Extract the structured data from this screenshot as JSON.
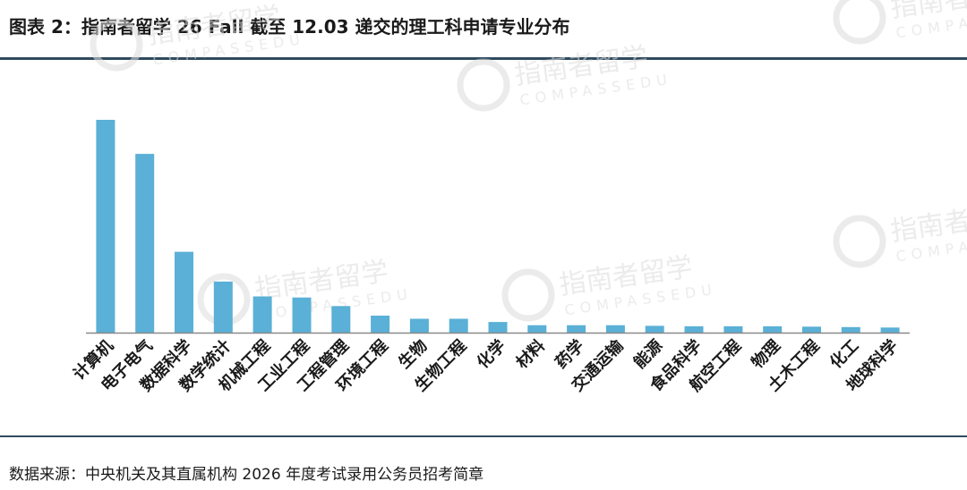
{
  "figure": {
    "title": "图表 2：指南者留学 26 Fall 截至 12.03 递交的理工科申请专业分布",
    "source": "数据来源：中央机关及其直属机构 2026 年度考试录用公务员招考简章"
  },
  "watermark": {
    "brand": "指南者留学",
    "latin": "COMPASSEDU"
  },
  "colors": {
    "bar": "#5ab0d6",
    "axis": "#8a8a8a",
    "rule": "#2f4a5e",
    "watermark": "#dcdcdc"
  },
  "chart_data": {
    "type": "bar",
    "title": "",
    "xlabel": "",
    "ylabel": "",
    "ylim": [
      0,
      100
    ],
    "grid": false,
    "legend": "none",
    "categories": [
      "计算机",
      "电子电气",
      "数据科学",
      "数学统计",
      "机械工程",
      "工业工程",
      "工程管理",
      "环境工程",
      "生物",
      "生物工程",
      "化学",
      "材料",
      "药学",
      "交通运输",
      "能源",
      "食品科学",
      "航空工程",
      "物理",
      "土木工程",
      "化工",
      "地球科学"
    ],
    "values": [
      100,
      84,
      38,
      24,
      17,
      16.5,
      12.5,
      8,
      6.5,
      6.5,
      5,
      3.5,
      3.5,
      3.5,
      3.2,
      3,
      3,
      3,
      2.8,
      2.6,
      2.4
    ]
  }
}
